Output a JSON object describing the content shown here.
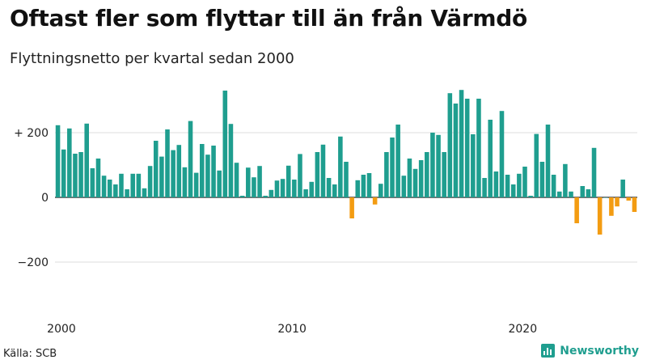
{
  "title": "Oftast fler som flyttar till än från Värmdö",
  "subtitle": "Flyttningsnetto per kvartal sedan 2000",
  "source": "Källa: SCB",
  "brand": "Newsworthy",
  "colors": {
    "positive": "#1f9e8f",
    "negative": "#f39c12",
    "grid": "#dddddd",
    "zero": "#222222"
  },
  "chart_data": {
    "type": "bar",
    "x_start": "2000 Q1",
    "ylim": [
      -300,
      330
    ],
    "y_ticks": [
      {
        "value": 200,
        "label": "+ 200"
      },
      {
        "value": 0,
        "label": "0"
      },
      {
        "value": -200,
        "label": "−200"
      }
    ],
    "x_ticks": [
      "2000",
      "2010",
      "2020"
    ],
    "values": [
      223,
      148,
      213,
      135,
      140,
      228,
      90,
      120,
      67,
      55,
      40,
      73,
      25,
      73,
      73,
      28,
      97,
      175,
      126,
      210,
      146,
      162,
      93,
      236,
      76,
      165,
      132,
      160,
      83,
      330,
      227,
      107,
      5,
      92,
      62,
      97,
      5,
      23,
      52,
      57,
      98,
      55,
      134,
      25,
      48,
      140,
      163,
      60,
      40,
      188,
      110,
      -65,
      53,
      70,
      75,
      -22,
      42,
      140,
      185,
      225,
      67,
      120,
      88,
      115,
      140,
      200,
      193,
      140,
      322,
      290,
      332,
      305,
      195,
      305,
      60,
      240,
      80,
      267,
      70,
      40,
      73,
      95,
      5,
      196,
      110,
      225,
      70,
      18,
      103,
      18,
      -80,
      35,
      25,
      153,
      -115,
      0,
      -57,
      -28,
      55,
      -10,
      -45
    ]
  }
}
